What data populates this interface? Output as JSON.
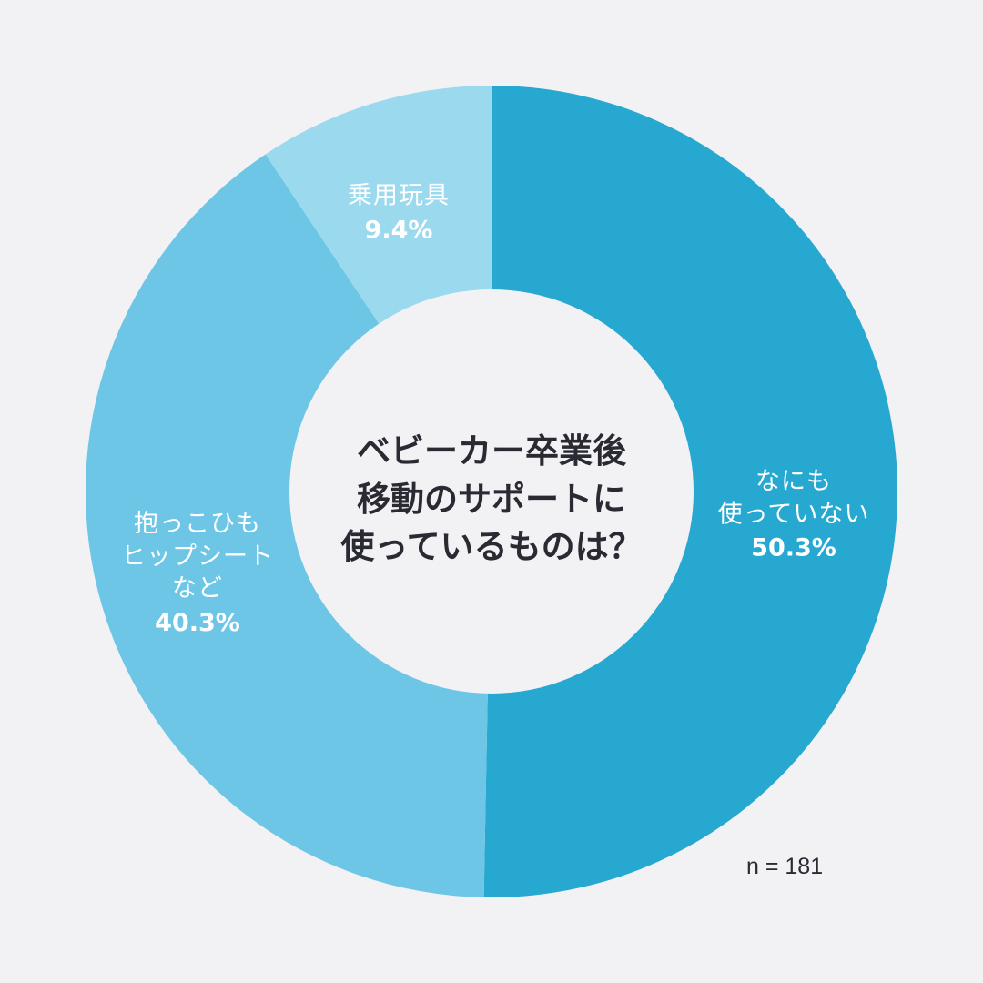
{
  "chart_data": {
    "type": "pie",
    "title": "ベビーカー卒業後\n移動のサポートに\n使っているものは？",
    "sample_note": "n = 181",
    "slices": [
      {
        "label": "なにも\n使っていない",
        "value": 50.3,
        "value_label": "50.3%",
        "color": "#27a8d1"
      },
      {
        "label": "抱っこひも\nヒップシート\nなど",
        "value": 40.3,
        "value_label": "40.3%",
        "color": "#6dc6e6"
      },
      {
        "label": "乗用玩具",
        "value": 9.4,
        "value_label": "9.4%",
        "color": "#9bd9ee"
      }
    ]
  },
  "colors": {
    "background": "#f2f1f4",
    "label_text": "#ffffff",
    "title_text": "#2a2a33"
  }
}
